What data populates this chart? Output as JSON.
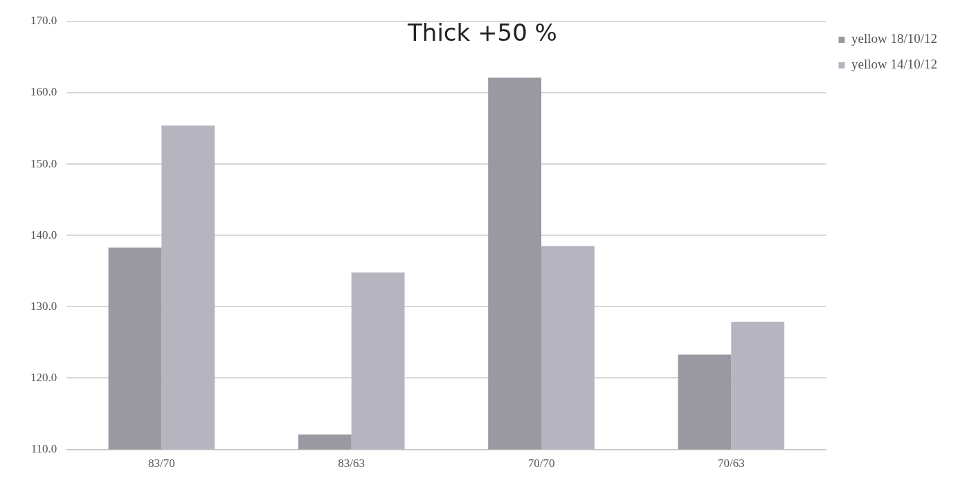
{
  "chart_data": {
    "type": "bar",
    "title": "Thick +50 %",
    "categories": [
      "83/70",
      "83/63",
      "70/70",
      "70/63"
    ],
    "series": [
      {
        "name": "yellow 18/10/12",
        "color": "#9a98a0",
        "values": [
          138.3,
          112.1,
          162.1,
          123.3
        ]
      },
      {
        "name": "yellow 14/10/12",
        "color": "#b6b4be",
        "values": [
          155.4,
          134.8,
          138.5,
          127.9
        ]
      }
    ],
    "ylim": [
      110,
      170
    ],
    "yticks": [
      {
        "value": 110,
        "label": "110.0"
      },
      {
        "value": 120,
        "label": "120.0"
      },
      {
        "value": 130,
        "label": "130.0"
      },
      {
        "value": 140,
        "label": "140.0"
      },
      {
        "value": 150,
        "label": "150.0"
      },
      {
        "value": 160,
        "label": "160.0"
      },
      {
        "value": 170,
        "label": "170.0"
      }
    ],
    "grid": "y",
    "legend": "top right"
  }
}
